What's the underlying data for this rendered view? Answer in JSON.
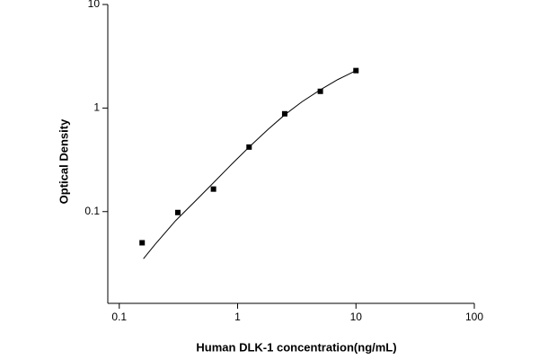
{
  "chart_data": {
    "type": "scatter",
    "x_label": "Human DLK-1 concentration(ng/mL)",
    "y_label": "Optical Density",
    "xscale": "log",
    "yscale": "log",
    "xlim": [
      0.08,
      100
    ],
    "ylim": [
      0.013,
      10
    ],
    "xticks": [
      0.1,
      1,
      10,
      100
    ],
    "yticks": [
      0.1,
      1,
      10
    ],
    "marker_color": "#000000",
    "line_color": "#000000",
    "x": [
      0.156,
      0.3125,
      0.625,
      1.25,
      2.5,
      5,
      10
    ],
    "values": [
      0.05,
      0.098,
      0.165,
      0.42,
      0.88,
      1.45,
      2.3
    ],
    "fit_curve": {
      "x": [
        0.16,
        0.2,
        0.3,
        0.45,
        0.625,
        0.9,
        1.25,
        1.8,
        2.5,
        3.5,
        5,
        7,
        10
      ],
      "y": [
        0.035,
        0.048,
        0.082,
        0.13,
        0.19,
        0.29,
        0.42,
        0.62,
        0.86,
        1.15,
        1.5,
        1.88,
        2.3
      ]
    }
  }
}
